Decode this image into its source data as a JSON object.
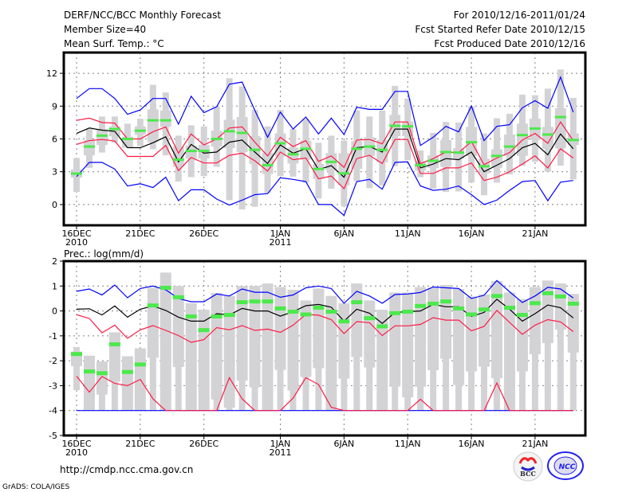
{
  "header": {
    "title": "DERF/NCC/BCC Monthly Forecast",
    "member_size": "Member Size=40",
    "variable_top": "Mean Surf. Temp.: °C",
    "period": "For 2010/12/16-2011/01/24",
    "started": "Fcst Started Refer Date 2010/12/15",
    "produced": "Fcst Produced Date 2010/12/16"
  },
  "footer": {
    "url": "http://cmdp.ncc.cma.gov.cn",
    "credit": "GrADS: COLA/IGES",
    "logos": [
      "BCC",
      "NCC"
    ]
  },
  "colors": {
    "whisker": "#d3d3d6",
    "mean": "#4ce94c",
    "median": "#000000",
    "pct": "#ff1a44",
    "extreme": "#0000ff",
    "grid": "#808080"
  },
  "chart_data": [
    {
      "type": "box+line",
      "title": "Mean Surf. Temp.: °C",
      "ylim": [
        -1.9,
        13.9
      ],
      "yticks": [
        0,
        3,
        6,
        9,
        12
      ],
      "xtick_days": [
        0,
        5,
        10,
        16,
        21,
        26,
        31,
        36
      ],
      "xtick_labels": [
        "16DEC",
        "21DEC",
        "26DEC",
        "1JAN",
        "6JAN",
        "11JAN",
        "16JAN",
        "21JAN"
      ],
      "xtick_years": {
        "0": "2010",
        "16": "2011"
      },
      "ndays": 40,
      "mean": [
        2.83,
        5.3,
        6.3,
        6.9,
        6.0,
        6.75,
        7.7,
        7.7,
        4.1,
        4.9,
        4.9,
        6.0,
        6.7,
        6.55,
        5.0,
        3.6,
        5.6,
        4.6,
        5.1,
        3.25,
        3.9,
        2.85,
        5.1,
        5.3,
        5.0,
        7.2,
        7.15,
        3.6,
        4.0,
        4.8,
        4.75,
        5.7,
        3.5,
        4.45,
        5.3,
        6.35,
        6.95,
        6.4,
        8.0,
        5.9
      ],
      "median": [
        6.5,
        7.0,
        6.8,
        6.7,
        5.2,
        5.2,
        5.65,
        6.2,
        3.9,
        5.5,
        4.7,
        4.8,
        5.7,
        5.9,
        4.8,
        3.75,
        5.45,
        4.7,
        5.1,
        3.2,
        3.55,
        2.5,
        5.2,
        5.3,
        4.8,
        6.9,
        6.9,
        3.35,
        3.7,
        4.2,
        4.1,
        4.8,
        3.0,
        3.6,
        4.2,
        5.2,
        5.6,
        4.55,
        6.45,
        5.1
      ],
      "upper_pct": [
        7.7,
        7.9,
        7.5,
        7.45,
        6.0,
        6.0,
        6.65,
        7.1,
        4.7,
        6.45,
        5.45,
        6.0,
        7.0,
        7.1,
        5.7,
        4.45,
        6.15,
        5.3,
        5.85,
        3.95,
        4.45,
        3.4,
        5.9,
        5.95,
        5.55,
        7.55,
        7.55,
        3.75,
        4.2,
        4.8,
        4.75,
        5.75,
        3.65,
        4.25,
        4.75,
        5.9,
        6.5,
        5.6,
        7.55,
        5.85
      ],
      "lower_pct": [
        5.5,
        5.85,
        5.95,
        5.8,
        4.4,
        4.4,
        4.4,
        5.4,
        3.1,
        4.3,
        3.8,
        3.8,
        4.5,
        4.7,
        4.0,
        3.05,
        4.8,
        4.1,
        4.25,
        2.35,
        2.6,
        1.45,
        4.2,
        4.5,
        3.75,
        5.95,
        5.95,
        2.85,
        2.85,
        3.35,
        3.35,
        3.8,
        2.2,
        2.5,
        3.0,
        3.7,
        4.45,
        3.35,
        5.1,
        4.25
      ],
      "upper_ext": [
        9.7,
        10.6,
        10.6,
        9.7,
        8.25,
        8.65,
        9.7,
        9.7,
        7.35,
        9.9,
        8.4,
        8.95,
        11.0,
        11.2,
        8.6,
        6.15,
        8.45,
        6.9,
        8.0,
        6.45,
        7.9,
        6.4,
        8.9,
        8.7,
        8.7,
        10.35,
        10.35,
        5.4,
        6.15,
        7.15,
        6.65,
        9.0,
        5.85,
        7.15,
        7.3,
        8.85,
        9.5,
        8.8,
        11.65,
        8.45
      ],
      "lower_ext": [
        2.55,
        3.85,
        3.85,
        3.25,
        1.7,
        1.9,
        1.55,
        2.5,
        0.35,
        1.35,
        1.35,
        0.5,
        -0.05,
        0.4,
        0.9,
        1.0,
        2.45,
        2.3,
        2.1,
        0,
        0,
        -1.0,
        2.1,
        2.3,
        1.4,
        3.85,
        3.9,
        1.7,
        1.3,
        1.4,
        1.7,
        0.9,
        0,
        0.4,
        1.3,
        2.1,
        2.2,
        0.35,
        2.05,
        2.2
      ],
      "whisker_hi": [
        4.25,
        6.9,
        8.05,
        8.05,
        7.4,
        7.85,
        10.95,
        10.25,
        6.3,
        7.25,
        7.15,
        8.95,
        11.55,
        10.8,
        8.65,
        7.15,
        8.65,
        6.9,
        7.85,
        5.65,
        6.3,
        5.85,
        8.6,
        8.05,
        8.6,
        10.85,
        9.7,
        4.95,
        6.55,
        7.55,
        7.5,
        9.0,
        6.5,
        7.9,
        8.3,
        10.05,
        10.0,
        10.6,
        12.35,
        9.75
      ],
      "whisker_lo": [
        1.15,
        3.35,
        4.75,
        5.65,
        5.55,
        5.35,
        5.05,
        4.5,
        2.1,
        2.5,
        2.6,
        3.45,
        0.4,
        -0.45,
        -0.2,
        1.05,
        2.6,
        2.55,
        2.0,
        0.55,
        1.45,
        -0.15,
        2.15,
        1.5,
        1.75,
        3.5,
        4.05,
        2.5,
        1.45,
        1.15,
        1.2,
        2.0,
        0.85,
        2.0,
        2.75,
        3.55,
        3.9,
        3.0,
        3.55,
        2.3
      ],
      "box_hi": [
        3.2,
        5.9,
        6.9,
        7.15,
        6.2,
        7.15,
        8.7,
        8.6,
        5.3,
        5.4,
        5.45,
        6.75,
        7.75,
        8.0,
        6.25,
        4.75,
        6.5,
        5.2,
        5.85,
        3.7,
        4.7,
        4.7,
        5.8,
        6.15,
        5.9,
        8.2,
        7.6,
        3.9,
        4.5,
        5.9,
        5.15,
        7.1,
        4.2,
        5.05,
        6.4,
        7.4,
        7.85,
        7.1,
        8.8,
        6.5
      ],
      "box_lo": [
        2.45,
        4.5,
        5.45,
        6.25,
        5.2,
        6.4,
        5.7,
        7.1,
        3.45,
        4.2,
        4.2,
        5.3,
        5.15,
        4.8,
        3.7,
        2.8,
        4.4,
        3.75,
        4.1,
        2.35,
        3.1,
        1.75,
        3.25,
        4.45,
        3.85,
        6.25,
        6.25,
        3.1,
        3.35,
        3.45,
        4.2,
        4.45,
        2.85,
        3.35,
        4.45,
        4.45,
        5.9,
        5.1,
        5.15,
        5.45
      ]
    },
    {
      "type": "box+line",
      "title": "Prec.: log(mm/d)",
      "ylim": [
        -5,
        2
      ],
      "yticks": [
        -5,
        -4,
        -3,
        -2,
        -1,
        0,
        1,
        2
      ],
      "xtick_days": [
        0,
        5,
        10,
        16,
        21,
        26,
        31,
        36
      ],
      "xtick_labels": [
        "16DEC",
        "21DEC",
        "26DEC",
        "1JAN",
        "6JAN",
        "11JAN",
        "16JAN",
        "21JAN"
      ],
      "xtick_years": {
        "0": "2010",
        "16": "2011"
      },
      "ndays": 40,
      "mean": [
        -1.73,
        -2.43,
        -2.5,
        -1.34,
        -2.45,
        -2.15,
        0.22,
        0.93,
        0.55,
        -0.22,
        -0.77,
        -0.22,
        -0.16,
        0.35,
        0.38,
        0.38,
        0.1,
        -0.03,
        -0.14,
        0.13,
        -0.03,
        -0.42,
        0.35,
        -0.29,
        -0.62,
        -0.09,
        -0.03,
        0.2,
        0.29,
        0.38,
        0.1,
        -0.14,
        0.06,
        0.6,
        0.13,
        -0.16,
        0.31,
        0.71,
        0.58,
        0.29
      ],
      "median": [
        0.07,
        0.09,
        -0.16,
        0.2,
        -0.25,
        0.07,
        0.2,
        0.02,
        -0.25,
        -0.41,
        -0.41,
        -0.11,
        -0.16,
        0.1,
        0,
        0,
        -0.21,
        -0.03,
        0.21,
        0.26,
        0.15,
        -0.41,
        0.07,
        -0.09,
        -0.5,
        -0.06,
        -0.03,
        0,
        0.26,
        0.17,
        0.17,
        -0.22,
        -0.06,
        0.47,
        0.07,
        -0.41,
        -0.11,
        0.24,
        0.13,
        -0.28
      ],
      "upper_pct": [
        -0.15,
        -0.3,
        -0.88,
        -0.57,
        -1.1,
        -0.76,
        -0.59,
        -0.78,
        -0.99,
        -1.26,
        -1.15,
        -0.67,
        -0.76,
        -0.59,
        -0.78,
        -0.73,
        -0.86,
        -0.57,
        -0.14,
        -0.17,
        -0.35,
        -0.91,
        -0.43,
        -0.47,
        -0.99,
        -0.6,
        -0.6,
        -0.54,
        -0.27,
        -0.37,
        -0.37,
        -0.8,
        -0.62,
        0.02,
        -0.46,
        -0.94,
        -0.57,
        -0.35,
        -0.44,
        -0.83
      ],
      "lower_pct": [
        -2.62,
        -3.26,
        -2.63,
        -2.91,
        -3.0,
        -2.75,
        -3.53,
        -4,
        -4,
        -4,
        -4,
        -4,
        -2.68,
        -3.53,
        -4,
        -4,
        -4,
        -3.5,
        -2.68,
        -2.95,
        -3.87,
        -4,
        -4,
        -4,
        -4,
        -4,
        -4,
        -3.55,
        -4,
        -4,
        -4,
        -4,
        -4,
        -2.89,
        -4,
        -4,
        -4,
        -4,
        -4,
        -4
      ],
      "upper_ext": [
        0.79,
        0.88,
        0.64,
        1.04,
        0.53,
        0.9,
        1.0,
        0.85,
        0.5,
        0.37,
        0.37,
        0.68,
        0.6,
        0.88,
        0.75,
        0.75,
        0.55,
        0.64,
        0.93,
        1.0,
        0.9,
        0.31,
        0.79,
        0.6,
        0.31,
        0.66,
        0.68,
        0.74,
        0.96,
        0.93,
        0.9,
        0.5,
        0.63,
        1.22,
        0.77,
        0.34,
        0.6,
        0.95,
        0.88,
        0.52
      ],
      "lower_ext": [
        -4,
        -4,
        -4,
        -4,
        -4,
        -4,
        -4,
        -4,
        -4,
        -4,
        -4,
        -4,
        -4,
        -4,
        -4,
        -4,
        -4,
        -4,
        -4,
        -4,
        -4,
        -4,
        -4,
        -4,
        -4,
        -4,
        -4,
        -4,
        -4,
        -4,
        -4,
        -4,
        -4,
        -4,
        -4,
        -4,
        -4,
        -4,
        -4,
        -4
      ],
      "whisker_hi": [
        -1.45,
        -1.8,
        -2.03,
        -0.86,
        -1.82,
        -1.5,
        0.93,
        1.54,
        1.0,
        0.31,
        0.05,
        0.72,
        0.61,
        1.0,
        1.0,
        1.1,
        0.96,
        0.85,
        0.42,
        0.9,
        0.6,
        0.31,
        1.1,
        0.42,
        0.05,
        0.74,
        0.74,
        0.96,
        0.93,
        1.04,
        0.88,
        0.58,
        0.66,
        1.2,
        0.74,
        0.47,
        0.96,
        1.22,
        1.1,
        0.68
      ],
      "whisker_lo": [
        -3.18,
        -4,
        -4,
        -4,
        -4,
        -4,
        -4,
        -4,
        -4,
        -4,
        -4,
        -4,
        -4,
        -4,
        -4,
        -4,
        -4,
        -4,
        -4,
        -4,
        -4,
        -4,
        -4,
        -4,
        -4,
        -4,
        -4,
        -4,
        -4,
        -4,
        -4,
        -4,
        -4,
        -4,
        -4,
        -4,
        -4,
        -4,
        -4,
        -4
      ],
      "box_hi": [
        -1.63,
        -1.8,
        -2.03,
        -0.86,
        -1.82,
        -1.5,
        0.93,
        1.54,
        1.0,
        0.31,
        0.05,
        0.72,
        0.61,
        1.0,
        1.0,
        1.1,
        0.96,
        0.85,
        0.42,
        0.9,
        0.6,
        0.31,
        1.1,
        0.42,
        0.05,
        0.74,
        0.74,
        0.96,
        0.93,
        1.04,
        0.88,
        0.58,
        0.66,
        1.2,
        0.74,
        0.47,
        0.96,
        1.22,
        1.1,
        0.68
      ],
      "box_lo": [
        -2.22,
        -4,
        -3.36,
        -2.84,
        -4,
        -4,
        -1.88,
        -4,
        -2.25,
        -4,
        -4,
        -3.55,
        -3.88,
        -2.8,
        -3.07,
        -4,
        -2.37,
        -3.2,
        -2.65,
        -2.3,
        -4,
        -2.72,
        -1.85,
        -2.27,
        -4,
        -3.04,
        -3.47,
        -3.04,
        -2.38,
        -1.92,
        -2.97,
        -2.43,
        -2.24,
        -2.7,
        -4,
        -2.43,
        -1.74,
        -1.29,
        -0.75,
        -1.67
      ]
    }
  ]
}
